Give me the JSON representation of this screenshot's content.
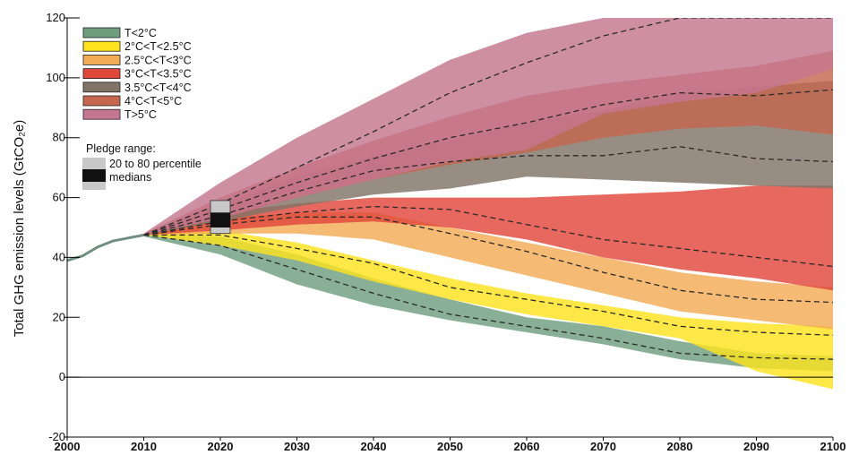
{
  "chart_data": {
    "type": "area",
    "title": "",
    "xlabel": "",
    "ylabel": "Total GHG emission levels (GtCO₂e)",
    "xlim": [
      2000,
      2100
    ],
    "ylim": [
      -20,
      120
    ],
    "x_ticks": [
      "2000",
      "2010",
      "2020",
      "2030",
      "2040",
      "2050",
      "2060",
      "2070",
      "2080",
      "2090",
      "2100"
    ],
    "y_ticks": [
      "-20",
      "0",
      "20",
      "40",
      "60",
      "80",
      "100",
      "120"
    ],
    "legend_placement": "top-left",
    "historical": {
      "x": [
        2000,
        2002,
        2004,
        2006,
        2008,
        2010
      ],
      "y": [
        39,
        40.5,
        43.5,
        45.5,
        46.5,
        47.5
      ]
    },
    "series": [
      {
        "name": "T<2°C",
        "color": "#6f9e7f",
        "x": [
          2010,
          2020,
          2030,
          2040,
          2050,
          2060,
          2070,
          2080,
          2090,
          2100
        ],
        "low": [
          47,
          41,
          31,
          24,
          19,
          15,
          11,
          6,
          3,
          2
        ],
        "high": [
          48,
          47,
          41,
          33,
          26,
          20,
          17,
          12,
          8,
          7
        ],
        "median": [
          47.5,
          44,
          36,
          28,
          21,
          17,
          13,
          8,
          6.5,
          6
        ]
      },
      {
        "name": "2°C<T<2.5°C",
        "color": "#fde31e",
        "x": [
          2010,
          2020,
          2030,
          2040,
          2050,
          2060,
          2070,
          2080,
          2090,
          2100
        ],
        "low": [
          47.5,
          44,
          39,
          32,
          26,
          21,
          17,
          13,
          2,
          -4
        ],
        "high": [
          48,
          49,
          45,
          39,
          33,
          28,
          24,
          20,
          18,
          17
        ],
        "median": [
          47.5,
          47.5,
          43,
          38,
          30,
          26,
          22,
          17,
          15,
          14
        ]
      },
      {
        "name": "2.5°C<T<3°C",
        "color": "#f3ac56",
        "x": [
          2010,
          2020,
          2030,
          2040,
          2050,
          2060,
          2070,
          2080,
          2090,
          2100
        ],
        "low": [
          47.5,
          48,
          48,
          46,
          40,
          34,
          28,
          22,
          19,
          16
        ],
        "high": [
          48,
          53,
          55,
          55,
          50,
          45,
          40,
          35,
          32,
          30
        ],
        "median": [
          47.5,
          51,
          53.5,
          53.5,
          48,
          42,
          35,
          29,
          26,
          25
        ]
      },
      {
        "name": "3°C<T<3.5°C",
        "color": "#e0473a",
        "x": [
          2010,
          2020,
          2030,
          2040,
          2050,
          2060,
          2070,
          2080,
          2090,
          2100
        ],
        "low": [
          47.5,
          49,
          51,
          52,
          50,
          46,
          40,
          36,
          33,
          29
        ],
        "high": [
          48,
          55,
          58,
          60,
          60,
          60,
          61,
          62,
          64,
          64
        ],
        "median": [
          47.5,
          52,
          55,
          57,
          56,
          51,
          46,
          43,
          40,
          37
        ]
      },
      {
        "name": "3.5°C<T<4°C",
        "color": "#807467",
        "x": [
          2010,
          2020,
          2030,
          2040,
          2050,
          2060,
          2070,
          2080,
          2090,
          2100
        ],
        "low": [
          47.5,
          52,
          57,
          61,
          63,
          67,
          66,
          65,
          64,
          63
        ],
        "high": [
          48,
          58,
          67,
          74,
          79,
          85,
          89,
          95,
          97,
          99
        ],
        "median": [
          47.5,
          54,
          62,
          69,
          72,
          74,
          74,
          77,
          73,
          72
        ]
      },
      {
        "name": "4°C<T<5°C",
        "color": "#c5674f",
        "x": [
          2010,
          2020,
          2030,
          2040,
          2050,
          2060,
          2070,
          2080,
          2090,
          2100
        ],
        "low": [
          47.5,
          53,
          60,
          66,
          71,
          75,
          80,
          83,
          84,
          81
        ],
        "high": [
          48,
          60,
          70,
          79,
          87,
          94,
          98,
          101,
          104,
          109
        ],
        "median": [
          47.5,
          56,
          65,
          73,
          80,
          85,
          91,
          95,
          94,
          96
        ]
      },
      {
        "name": "T>5°C",
        "color": "#c4768f",
        "x": [
          2010,
          2020,
          2030,
          2040,
          2050,
          2060,
          2070,
          2080,
          2090,
          2100
        ],
        "low": [
          47.5,
          53,
          60,
          66,
          72,
          76,
          88,
          92,
          95,
          103
        ],
        "high": [
          48,
          65,
          80,
          93,
          106,
          115,
          120,
          120,
          120,
          120
        ],
        "median": [
          47.5,
          58,
          70,
          82,
          95,
          105,
          114,
          120,
          120,
          120
        ]
      }
    ],
    "pledge": {
      "title": "Pledge range:",
      "range_label": "20 to 80 percentile",
      "median_label": "medians",
      "year": 2020,
      "range": [
        48,
        59
      ],
      "median_range": [
        50,
        55
      ],
      "range_color": "#c8c8c8",
      "median_color": "#111111"
    }
  }
}
